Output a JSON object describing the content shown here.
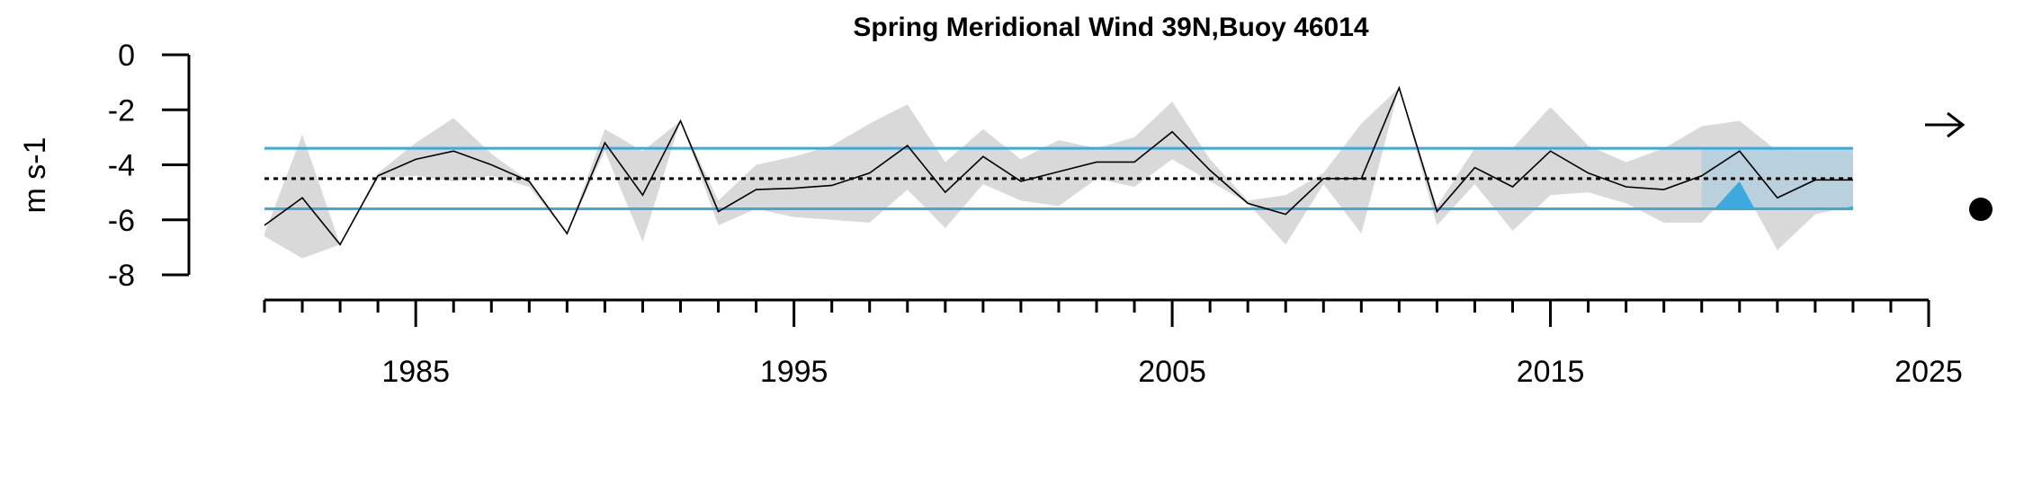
{
  "chart_data": {
    "type": "line",
    "title": "Spring Meridional Wind 39N,Buoy 46014",
    "ylabel": "m s-1",
    "xlabel": "",
    "xlim": [
      1981,
      2025
    ],
    "ylim": [
      -8,
      0
    ],
    "x_ticks": [
      1985,
      1995,
      2005,
      2015,
      2025
    ],
    "y_ticks": [
      0,
      -2,
      -4,
      -6,
      -8
    ],
    "mean": -4.5,
    "sd_upper": -3.4,
    "sd_lower": -5.6,
    "highlight_range": [
      2019,
      2023
    ],
    "series": [
      {
        "x": [
          1981,
          1982,
          1983,
          1984,
          1985,
          1986,
          1987,
          1988,
          1989,
          1990,
          1991,
          1992,
          1993,
          1994,
          1995,
          1996,
          1997,
          1998,
          1999,
          2000,
          2001,
          2002,
          2003,
          2004,
          2005,
          2006,
          2007,
          2008,
          2009,
          2010,
          2011,
          2012,
          2013,
          2014,
          2015,
          2016,
          2017,
          2018,
          2019,
          2020,
          2021,
          2022,
          2023
        ],
        "values": [
          -6.2,
          -5.2,
          -6.9,
          -4.4,
          -3.8,
          -3.5,
          -4.0,
          -4.6,
          -6.5,
          -3.2,
          -5.1,
          -2.4,
          -5.7,
          -4.9,
          -4.85,
          -4.75,
          -4.3,
          -3.3,
          -5.0,
          -3.7,
          -4.6,
          -4.25,
          -3.9,
          -3.9,
          -2.8,
          -4.2,
          -5.4,
          -5.8,
          -4.5,
          -4.5,
          -1.2,
          -5.7,
          -4.1,
          -4.8,
          -3.5,
          -4.3,
          -4.8,
          -4.9,
          -4.4,
          -3.5,
          -5.2,
          -4.55,
          -4.55
        ],
        "upper": [
          -6.5,
          -2.9,
          -6.9,
          -4.3,
          -3.2,
          -2.3,
          -3.6,
          -4.6,
          -6.5,
          -2.7,
          -3.5,
          -2.4,
          -5.3,
          -4.0,
          -3.7,
          -3.3,
          -2.5,
          -1.8,
          -3.9,
          -2.7,
          -3.8,
          -3.1,
          -3.4,
          -3.0,
          -1.7,
          -3.8,
          -5.3,
          -5.1,
          -4.3,
          -2.5,
          -1.2,
          -5.5,
          -3.4,
          -3.4,
          -1.9,
          -3.3,
          -3.9,
          -3.4,
          -2.6,
          -2.4,
          -3.5,
          -3.6,
          -3.6
        ],
        "lower": [
          -6.6,
          -7.4,
          -6.9,
          -4.5,
          -4.4,
          -4.6,
          -4.4,
          -4.8,
          -6.5,
          -3.5,
          -6.8,
          -2.4,
          -6.2,
          -5.6,
          -5.9,
          -6.0,
          -6.1,
          -4.9,
          -6.3,
          -4.7,
          -5.3,
          -5.5,
          -4.5,
          -4.8,
          -3.8,
          -4.6,
          -5.4,
          -6.9,
          -4.7,
          -6.5,
          -1.2,
          -6.2,
          -4.7,
          -6.4,
          -5.1,
          -5.0,
          -5.4,
          -6.1,
          -6.1,
          -4.6,
          -7.1,
          -5.8,
          -5.5
        ]
      }
    ],
    "symbols": [
      "right-arrow-icon",
      "filled-circle-icon"
    ],
    "colors": {
      "line": "#000000",
      "band": "#d9d9d9",
      "sd_lines": "#3da9dc",
      "highlight_fill": "#b5cfdb",
      "highlight_peak": "#3da9dc",
      "mean": "#000000"
    }
  }
}
